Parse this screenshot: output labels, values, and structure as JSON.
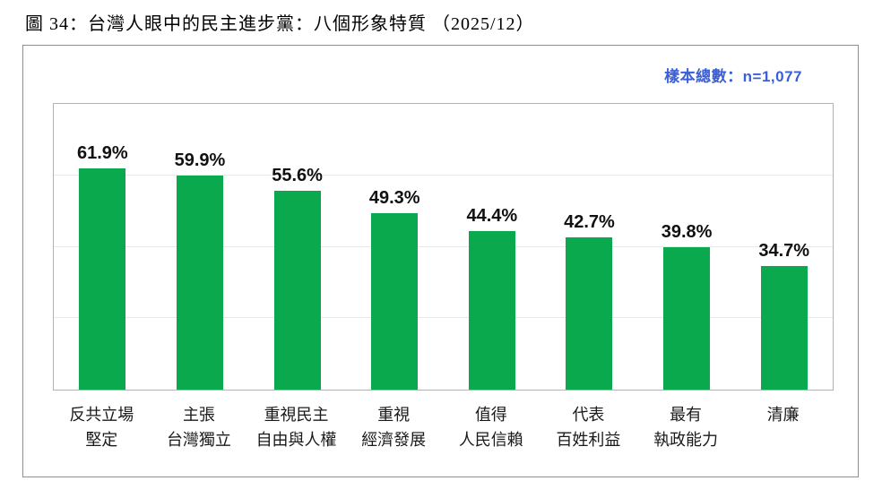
{
  "page": {
    "title": "圖 34：台灣人眼中的民主進步黨：八個形象特質 （2025/12）"
  },
  "panel": {
    "sample_label": "樣本總數：n=1,077"
  },
  "colors": {
    "bar_green": "#0BA94E",
    "sample_blue": "#3A5FD6",
    "grid_gray": "#e8e8e8"
  },
  "chart_data": {
    "type": "bar",
    "title": "台灣人眼中的民主進步黨：八個形象特質",
    "categories": [
      "反共立場\n堅定",
      "主張\n台灣獨立",
      "重視民主\n自由與人權",
      "重視\n經濟發展",
      "值得\n人民信賴",
      "代表\n百姓利益",
      "最有\n執政能力",
      "清廉"
    ],
    "values": [
      61.9,
      59.9,
      55.6,
      49.3,
      44.4,
      42.7,
      39.8,
      34.7
    ],
    "value_labels": [
      "61.9%",
      "59.9%",
      "55.6%",
      "49.3%",
      "44.4%",
      "42.7%",
      "39.8%",
      "34.7%"
    ],
    "xlabel": "",
    "ylabel": "",
    "ylim": [
      0,
      80
    ],
    "grid_step": 20,
    "grid": true,
    "legend": false,
    "bar_color": "#0BA94E"
  }
}
